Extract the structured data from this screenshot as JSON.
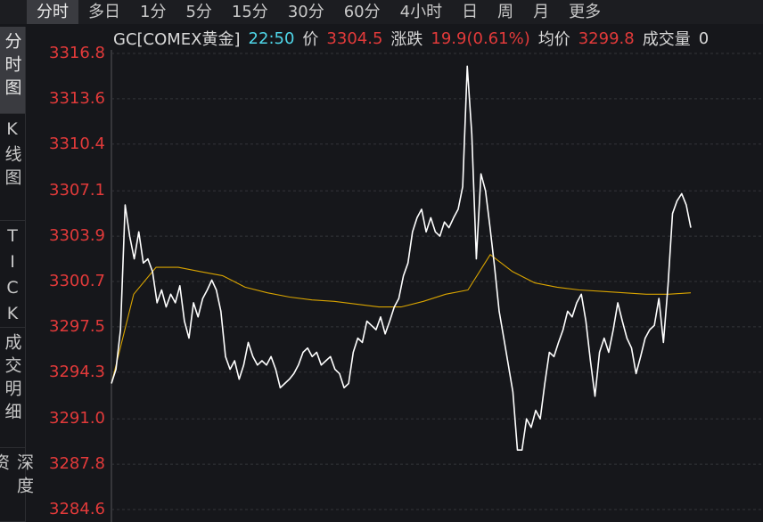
{
  "toolbar": {
    "tabs": [
      "分时",
      "多日",
      "1分",
      "5分",
      "15分",
      "30分",
      "60分",
      "4小时",
      "日",
      "周",
      "月",
      "更多"
    ]
  },
  "side_tabs": [
    "分时图",
    "K线图",
    "TICK",
    "成交明细",
    "深度资"
  ],
  "header": {
    "symbol": "GC[COMEX黄金]",
    "time": "22:50",
    "price_label": "价",
    "price": "3304.5",
    "change_label": "涨跌",
    "change": "19.9(0.61%)",
    "avg_label": "均价",
    "avg": "3299.8",
    "volume_label": "成交量",
    "volume": "0"
  },
  "chart_data": {
    "type": "line",
    "ylim": [
      3284.6,
      3316.8
    ],
    "yticks": [
      3284.6,
      3287.8,
      {
        "value": 3291.0,
        "label": "3291.0"
      },
      3294.3,
      3297.5,
      3300.7,
      3303.9,
      3307.1,
      3310.4,
      3313.6,
      3316.8
    ],
    "grid": true,
    "series": [
      {
        "name": "价",
        "color": "#ffffff",
        "values": [
          3293.5,
          3294.5,
          3297.3,
          3306.1,
          3303.9,
          3302.3,
          3304.2,
          3302.0,
          3302.3,
          3301.4,
          3299.2,
          3300.1,
          3298.9,
          3299.8,
          3299.2,
          3300.4,
          3297.9,
          3296.7,
          3299.2,
          3298.2,
          3299.5,
          3300.1,
          3300.8,
          3300.1,
          3298.6,
          3295.4,
          3294.5,
          3295.1,
          3293.8,
          3294.8,
          3296.4,
          3295.4,
          3294.8,
          3295.1,
          3294.8,
          3295.4,
          3294.5,
          3293.2,
          3293.5,
          3293.8,
          3294.2,
          3294.8,
          3295.7,
          3296.0,
          3295.4,
          3295.7,
          3294.8,
          3295.1,
          3295.4,
          3294.5,
          3294.2,
          3293.2,
          3293.5,
          3295.7,
          3296.7,
          3296.4,
          3297.9,
          3297.6,
          3297.3,
          3298.2,
          3297.0,
          3297.9,
          3298.9,
          3299.5,
          3301.1,
          3302.0,
          3304.2,
          3305.2,
          3305.8,
          3304.2,
          3305.2,
          3304.2,
          3303.9,
          3304.9,
          3304.5,
          3305.2,
          3305.8,
          3307.4,
          3315.9,
          3311.1,
          3302.3,
          3308.3,
          3307.1,
          3304.5,
          3301.7,
          3298.6,
          3296.7,
          3294.8,
          3292.9,
          3288.8,
          3288.8,
          3291.0,
          3290.4,
          3291.6,
          3291.0,
          3293.5,
          3295.7,
          3295.4,
          3296.4,
          3297.3,
          3298.6,
          3298.2,
          3299.2,
          3299.8,
          3297.9,
          3295.1,
          3292.6,
          3295.7,
          3296.7,
          3295.7,
          3297.3,
          3299.2,
          3297.9,
          3296.7,
          3296.0,
          3294.2,
          3295.4,
          3296.7,
          3297.3,
          3297.6,
          3299.5,
          3296.4,
          3300.4,
          3305.5,
          3306.4,
          3306.9,
          3306.1,
          3304.5
        ]
      },
      {
        "name": "均价",
        "color": "#d9a400",
        "values": [
          3293.5,
          3299.8,
          3301.7,
          3301.7,
          3301.4,
          3301.1,
          3300.3,
          3299.9,
          3299.6,
          3299.4,
          3299.3,
          3299.1,
          3298.9,
          3298.9,
          3299.3,
          3299.8,
          3300.1,
          3302.6,
          3301.4,
          3300.6,
          3300.3,
          3300.1,
          3300.0,
          3299.9,
          3299.8,
          3299.8,
          3299.9
        ]
      }
    ]
  }
}
